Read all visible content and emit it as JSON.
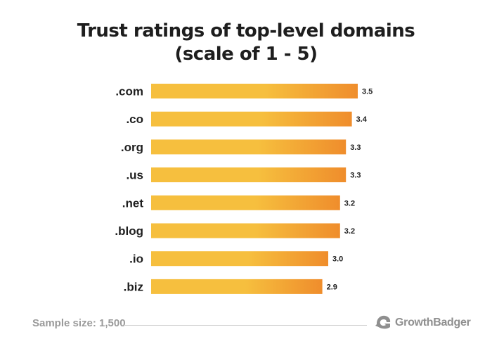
{
  "title_line1": "Trust ratings of top-level domains",
  "title_line2": "(scale of 1 - 5)",
  "footer": {
    "sample_label": "Sample size:",
    "sample_value": "1,500",
    "brand": "GrowthBadger"
  },
  "colors": {
    "bar_start": "#f6bf3e",
    "bar_end": "#ef8d2c",
    "label": "#1e1e1e",
    "footer_text": "#9a9a9a"
  },
  "icons": {
    "brand_logo": "badger-logo-icon"
  },
  "chart_data": {
    "type": "bar",
    "orientation": "horizontal",
    "title": "Trust ratings of top-level domains (scale of 1 - 5)",
    "categories": [
      ".com",
      ".co",
      ".org",
      ".us",
      ".net",
      ".blog",
      ".io",
      ".biz"
    ],
    "values": [
      3.5,
      3.4,
      3.3,
      3.3,
      3.2,
      3.2,
      3.0,
      2.9
    ],
    "value_labels": [
      "3.5",
      "3.4",
      "3.3",
      "3.3",
      "3.2",
      "3.2",
      "3.0",
      "2.9"
    ],
    "xlabel": "",
    "ylabel": "",
    "grid": false,
    "legend": "none"
  }
}
